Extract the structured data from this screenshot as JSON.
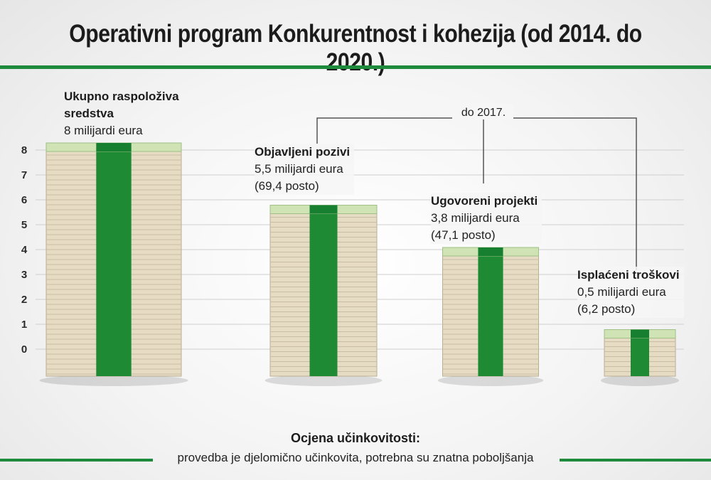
{
  "header": {
    "title": "Operativni program Konkurentnost i kohezija (od 2014. do 2020.)"
  },
  "chart_data": {
    "type": "bar",
    "title": "Operativni program Konkurentnost i kohezija (od 2014. do 2020.)",
    "ylim": [
      0,
      8
    ],
    "yticks": [
      "0",
      "1",
      "2",
      "3",
      "4",
      "5",
      "6",
      "7",
      "8"
    ],
    "grid": true,
    "categories": [
      "Ukupno raspoloživa sredstva",
      "Objavljeni pozivi",
      "Ugovoreni projekti",
      "Isplaćeni troškovi"
    ],
    "values": [
      8,
      5.5,
      3.8,
      0.5
    ],
    "bracket_label": "do 2017.",
    "annotations": [
      {
        "title_line1": "Ukupno raspoloživa",
        "title_line2": "sredstva",
        "amount": "8 milijardi eura",
        "percent": ""
      },
      {
        "title_line1": "Objavljeni pozivi",
        "title_line2": "",
        "amount": "5,5 milijardi eura",
        "percent": "(69,4 posto)"
      },
      {
        "title_line1": "Ugovoreni projekti",
        "title_line2": "",
        "amount": "3,8 milijardi eura",
        "percent": "(47,1 posto)"
      },
      {
        "title_line1": "Isplaćeni troškovi",
        "title_line2": "",
        "amount": "0,5 milijardi eura",
        "percent": "(6,2 posto)"
      }
    ]
  },
  "footer": {
    "title": "Ocjena učinkovitosti:",
    "text": "provedba je djelomično učinkovita, potrebna su znatna poboljšanja"
  },
  "colors": {
    "accent": "#1d8a3c",
    "band": "#1e8a34",
    "bill": "#e6dcc4"
  }
}
